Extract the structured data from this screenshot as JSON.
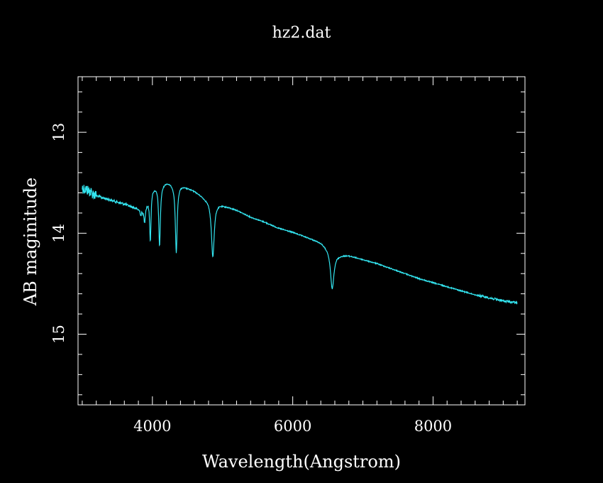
{
  "chart_data": {
    "type": "line",
    "title": "hz2.dat",
    "xlabel": "Wavelength(Angstrom)",
    "ylabel": "AB maginitude",
    "xlim": [
      2940,
      9310
    ],
    "ylim": [
      15.7,
      12.45
    ],
    "y_inverted": true,
    "grid": false,
    "x_ticks": [
      4000,
      6000,
      8000
    ],
    "x_tick_labels": [
      "4000",
      "6000",
      "8000"
    ],
    "x_minor_step": 200,
    "y_ticks": [
      13,
      14,
      15
    ],
    "y_tick_labels": [
      "13",
      "14",
      "15"
    ],
    "y_minor_step": 0.2,
    "colors": {
      "background": "#000000",
      "frame": "#ffffff",
      "series": "#33e5f0",
      "text": "#ffffff"
    },
    "series": [
      {
        "values": {
          "continuum": [
            [
              3000,
              13.55
            ],
            [
              3100,
              13.58
            ],
            [
              3200,
              13.63
            ],
            [
              3400,
              13.67
            ],
            [
              3600,
              13.71
            ],
            [
              3800,
              13.76
            ],
            [
              3880,
              13.78
            ],
            [
              4000,
              13.55
            ],
            [
              4200,
              13.49
            ],
            [
              4400,
              13.52
            ],
            [
              4600,
              13.58
            ],
            [
              4750,
              13.65
            ],
            [
              5000,
              13.72
            ],
            [
              5200,
              13.77
            ],
            [
              5400,
              13.84
            ],
            [
              5600,
              13.89
            ],
            [
              5800,
              13.95
            ],
            [
              6000,
              13.99
            ],
            [
              6200,
              14.04
            ],
            [
              6400,
              14.09
            ],
            [
              6500,
              14.14
            ],
            [
              6650,
              14.21
            ],
            [
              6800,
              14.22
            ],
            [
              7000,
              14.26
            ],
            [
              7200,
              14.3
            ],
            [
              7400,
              14.35
            ],
            [
              7600,
              14.4
            ],
            [
              7800,
              14.45
            ],
            [
              8000,
              14.49
            ],
            [
              8200,
              14.53
            ],
            [
              8400,
              14.57
            ],
            [
              8600,
              14.61
            ],
            [
              8800,
              14.64
            ],
            [
              9000,
              14.67
            ],
            [
              9200,
              14.69
            ]
          ],
          "absorption_lines": [
            {
              "center": 3835,
              "depth": 0.05,
              "width": 8
            },
            {
              "center": 3889,
              "depth": 0.12,
              "width": 10
            },
            {
              "center": 3970,
              "depth": 0.46,
              "width": 12
            },
            {
              "center": 4102,
              "depth": 0.6,
              "width": 14
            },
            {
              "center": 4340,
              "depth": 0.68,
              "width": 16
            },
            {
              "center": 4861,
              "depth": 0.55,
              "width": 24
            },
            {
              "center": 6563,
              "depth": 0.38,
              "width": 30
            }
          ],
          "noise": [
            {
              "from": 3000,
              "to": 3200,
              "amplitude": 0.055
            },
            {
              "from": 3200,
              "to": 3950,
              "amplitude": 0.012
            },
            {
              "from": 3950,
              "to": 8650,
              "amplitude": 0.005
            },
            {
              "from": 8650,
              "to": 9200,
              "amplitude": 0.012
            }
          ]
        }
      }
    ]
  }
}
